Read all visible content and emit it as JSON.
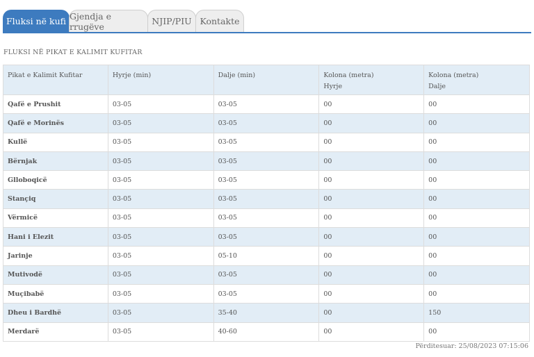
{
  "tabs": [
    {
      "label": "Fluksi në kufi",
      "active": true
    },
    {
      "label": "Gjendja e rrugëve",
      "active": false
    },
    {
      "label": "NJIP/PIU",
      "active": false
    },
    {
      "label": "Kontakte",
      "active": false
    }
  ],
  "section_title": "FLUKSI NË PIKAT E KALIMIT KUFITAR",
  "table": {
    "headers": {
      "name": "Pikat e Kalimit Kufitar",
      "entry": "Hyrje (min)",
      "exit": "Dalje (min)",
      "queue_entry_1": "Kolona (metra)",
      "queue_entry_2": "Hyrje",
      "queue_exit_1": "Kolona (metra)",
      "queue_exit_2": "Dalje"
    },
    "rows": [
      {
        "name": "Qafë e Prushit",
        "entry": "03-05",
        "exit": "03-05",
        "queue_in": "00",
        "queue_out": "00"
      },
      {
        "name": "Qafë e Morinës",
        "entry": "03-05",
        "exit": "03-05",
        "queue_in": "00",
        "queue_out": "00"
      },
      {
        "name": "Kullë",
        "entry": "03-05",
        "exit": "03-05",
        "queue_in": "00",
        "queue_out": "00"
      },
      {
        "name": "Bërnjak",
        "entry": "03-05",
        "exit": "03-05",
        "queue_in": "00",
        "queue_out": "00"
      },
      {
        "name": "Glloboqicë",
        "entry": "03-05",
        "exit": "03-05",
        "queue_in": "00",
        "queue_out": "00"
      },
      {
        "name": "Stançiq",
        "entry": "03-05",
        "exit": "03-05",
        "queue_in": "00",
        "queue_out": "00"
      },
      {
        "name": "Vërmicë",
        "entry": "03-05",
        "exit": "03-05",
        "queue_in": "00",
        "queue_out": "00"
      },
      {
        "name": "Hani i Elezit",
        "entry": "03-05",
        "exit": "03-05",
        "queue_in": "00",
        "queue_out": "00"
      },
      {
        "name": "Jarinje",
        "entry": "03-05",
        "exit": "05-10",
        "queue_in": "00",
        "queue_out": "00"
      },
      {
        "name": "Mutivodë",
        "entry": "03-05",
        "exit": "03-05",
        "queue_in": "00",
        "queue_out": "00"
      },
      {
        "name": "Muçibabë",
        "entry": "03-05",
        "exit": "03-05",
        "queue_in": "00",
        "queue_out": "00"
      },
      {
        "name": "Dheu i Bardhë",
        "entry": "03-05",
        "exit": "35-40",
        "queue_in": "00",
        "queue_out": "150"
      },
      {
        "name": "Merdarë",
        "entry": "03-05",
        "exit": "40-60",
        "queue_in": "00",
        "queue_out": "00"
      }
    ]
  },
  "updated": "Përditesuar: 25/08/2023 07:15:06",
  "colors": {
    "accent": "#3d7bbf",
    "row_alt": "#e2edf6"
  }
}
